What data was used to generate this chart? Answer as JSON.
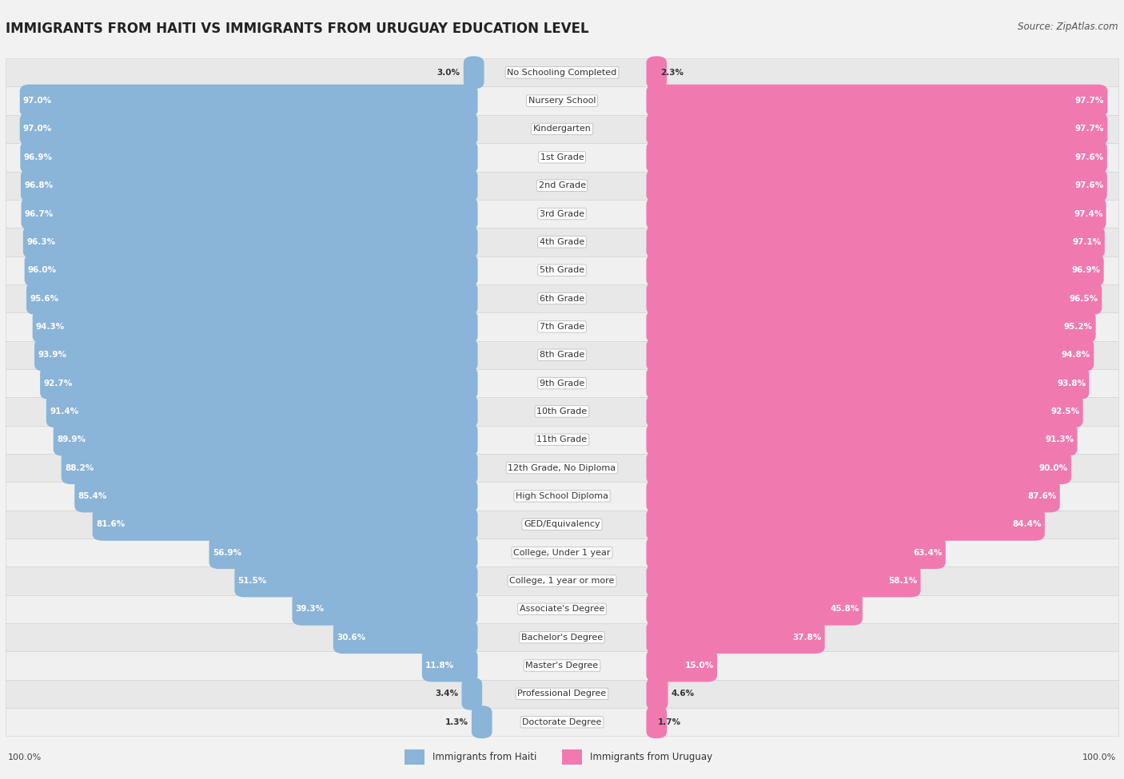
{
  "title": "IMMIGRANTS FROM HAITI VS IMMIGRANTS FROM URUGUAY EDUCATION LEVEL",
  "source": "Source: ZipAtlas.com",
  "categories": [
    "No Schooling Completed",
    "Nursery School",
    "Kindergarten",
    "1st Grade",
    "2nd Grade",
    "3rd Grade",
    "4th Grade",
    "5th Grade",
    "6th Grade",
    "7th Grade",
    "8th Grade",
    "9th Grade",
    "10th Grade",
    "11th Grade",
    "12th Grade, No Diploma",
    "High School Diploma",
    "GED/Equivalency",
    "College, Under 1 year",
    "College, 1 year or more",
    "Associate's Degree",
    "Bachelor's Degree",
    "Master's Degree",
    "Professional Degree",
    "Doctorate Degree"
  ],
  "haiti_values": [
    3.0,
    97.0,
    97.0,
    96.9,
    96.8,
    96.7,
    96.3,
    96.0,
    95.6,
    94.3,
    93.9,
    92.7,
    91.4,
    89.9,
    88.2,
    85.4,
    81.6,
    56.9,
    51.5,
    39.3,
    30.6,
    11.8,
    3.4,
    1.3
  ],
  "uruguay_values": [
    2.3,
    97.7,
    97.7,
    97.6,
    97.6,
    97.4,
    97.1,
    96.9,
    96.5,
    95.2,
    94.8,
    93.8,
    92.5,
    91.3,
    90.0,
    87.6,
    84.4,
    63.4,
    58.1,
    45.8,
    37.8,
    15.0,
    4.6,
    1.7
  ],
  "haiti_color": "#8ab4d8",
  "uruguay_color": "#f07ab0",
  "background_color": "#f2f2f2",
  "title_fontsize": 12,
  "label_fontsize": 8.0,
  "value_fontsize": 7.5,
  "source_fontsize": 8.5
}
